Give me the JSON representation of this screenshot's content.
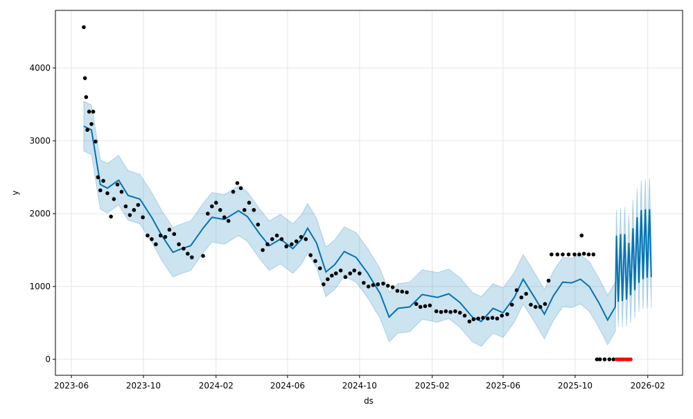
{
  "chart_data": {
    "type": "forecast",
    "xlabel": "ds",
    "ylabel": "y",
    "xlim": [
      "2023-05-05",
      "2026-04-01"
    ],
    "ylim": [
      -219,
      4790
    ],
    "xticks": [
      "2023-06",
      "2023-10",
      "2024-02",
      "2024-06",
      "2024-10",
      "2025-02",
      "2025-06",
      "2025-10",
      "2026-02"
    ],
    "yticks": [
      0,
      1000,
      2000,
      3000,
      4000
    ],
    "grid": true,
    "series": [
      {
        "kind": "band",
        "color": "#0072b2",
        "x": [
          "2023-06-22",
          "2023-07-05",
          "2023-07-20",
          "2023-08-01",
          "2023-08-20",
          "2023-09-05",
          "2023-09-25",
          "2023-10-15",
          "2023-11-01",
          "2023-11-20",
          "2023-12-05",
          "2023-12-20",
          "2024-01-10",
          "2024-01-25",
          "2024-02-15",
          "2024-03-10",
          "2024-03-25",
          "2024-04-15",
          "2024-05-01",
          "2024-05-20",
          "2024-06-10",
          "2024-06-25",
          "2024-07-05",
          "2024-07-20",
          "2024-08-05",
          "2024-08-20",
          "2024-09-05",
          "2024-09-25",
          "2024-10-15",
          "2024-11-05",
          "2024-11-20",
          "2024-12-05",
          "2024-12-25",
          "2025-01-15",
          "2025-02-10",
          "2025-03-01",
          "2025-03-20",
          "2025-04-10",
          "2025-04-25",
          "2025-05-15",
          "2025-06-01",
          "2025-06-20",
          "2025-07-05",
          "2025-07-25",
          "2025-08-10",
          "2025-08-25",
          "2025-09-10",
          "2025-09-25",
          "2025-10-10",
          "2025-10-25",
          "2025-11-10",
          "2025-11-25",
          "2025-12-08",
          "2025-12-10",
          "2025-12-13",
          "2025-12-17",
          "2025-12-20",
          "2025-12-24",
          "2025-12-27",
          "2025-12-31",
          "2026-01-03",
          "2026-01-07",
          "2026-01-10",
          "2026-01-14",
          "2026-01-17",
          "2026-01-21",
          "2026-01-24",
          "2026-01-28",
          "2026-01-31",
          "2026-02-04",
          "2026-02-07"
        ],
        "values": [
          3200,
          3150,
          2400,
          2350,
          2460,
          2250,
          2200,
          1950,
          1700,
          1470,
          1520,
          1560,
          1800,
          1950,
          1920,
          2040,
          1960,
          1720,
          1560,
          1650,
          1520,
          1650,
          1800,
          1600,
          1200,
          1300,
          1480,
          1400,
          1180,
          900,
          580,
          700,
          720,
          890,
          850,
          900,
          780,
          580,
          520,
          700,
          640,
          850,
          1100,
          840,
          620,
          870,
          1060,
          1050,
          1100,
          1000,
          780,
          540,
          720,
          1700,
          790,
          1720,
          800,
          1720,
          820,
          1600,
          880,
          1800,
          950,
          1950,
          1050,
          2050,
          1100,
          2060,
          1120,
          2060,
          1130
        ],
        "upper": [
          3540,
          3490,
          2740,
          2690,
          2800,
          2590,
          2540,
          2290,
          2040,
          1810,
          1860,
          1900,
          2140,
          2290,
          2260,
          2380,
          2300,
          2060,
          1900,
          1990,
          1860,
          1990,
          2140,
          1940,
          1540,
          1640,
          1820,
          1740,
          1520,
          1240,
          920,
          1040,
          1060,
          1230,
          1190,
          1240,
          1120,
          920,
          860,
          1040,
          980,
          1190,
          1440,
          1180,
          960,
          1210,
          1400,
          1390,
          1440,
          1340,
          1120,
          880,
          1060,
          2050,
          1140,
          2080,
          1160,
          2090,
          1190,
          1980,
          1260,
          2190,
          1340,
          2350,
          1450,
          2460,
          1510,
          2480,
          1540,
          2490,
          1560
        ],
        "lower": [
          2860,
          2810,
          2060,
          2010,
          2120,
          1910,
          1860,
          1610,
          1360,
          1130,
          1180,
          1220,
          1460,
          1610,
          1580,
          1700,
          1620,
          1380,
          1220,
          1310,
          1180,
          1310,
          1460,
          1260,
          860,
          960,
          1140,
          1060,
          840,
          560,
          240,
          360,
          380,
          550,
          510,
          560,
          440,
          240,
          180,
          360,
          300,
          510,
          760,
          500,
          280,
          530,
          720,
          710,
          760,
          660,
          440,
          200,
          380,
          1350,
          440,
          1360,
          440,
          1350,
          450,
          1220,
          500,
          1410,
          560,
          1550,
          650,
          1640,
          690,
          1640,
          700,
          1630,
          700
        ]
      },
      {
        "kind": "points",
        "color": "#000000",
        "x": [
          "2023-06-22",
          "2023-06-24",
          "2023-06-26",
          "2023-06-28",
          "2023-07-01",
          "2023-07-05",
          "2023-07-08",
          "2023-07-12",
          "2023-07-16",
          "2023-07-20",
          "2023-07-25",
          "2023-08-01",
          "2023-08-07",
          "2023-08-12",
          "2023-08-18",
          "2023-08-25",
          "2023-09-01",
          "2023-09-08",
          "2023-09-15",
          "2023-09-22",
          "2023-09-30",
          "2023-10-08",
          "2023-10-15",
          "2023-10-22",
          "2023-10-30",
          "2023-11-07",
          "2023-11-14",
          "2023-11-22",
          "2023-11-30",
          "2023-12-08",
          "2023-12-15",
          "2023-12-22",
          "2024-01-10",
          "2024-01-18",
          "2024-01-25",
          "2024-02-01",
          "2024-02-08",
          "2024-02-15",
          "2024-02-22",
          "2024-03-01",
          "2024-03-08",
          "2024-03-14",
          "2024-03-20",
          "2024-03-28",
          "2024-04-05",
          "2024-04-12",
          "2024-04-20",
          "2024-04-28",
          "2024-05-06",
          "2024-05-14",
          "2024-05-22",
          "2024-05-30",
          "2024-06-08",
          "2024-06-16",
          "2024-06-24",
          "2024-07-02",
          "2024-07-10",
          "2024-07-18",
          "2024-07-26",
          "2024-08-01",
          "2024-08-08",
          "2024-08-15",
          "2024-08-22",
          "2024-08-30",
          "2024-09-07",
          "2024-09-15",
          "2024-09-22",
          "2024-10-01",
          "2024-10-08",
          "2024-10-16",
          "2024-10-24",
          "2024-11-01",
          "2024-11-10",
          "2024-11-18",
          "2024-11-26",
          "2024-12-04",
          "2024-12-12",
          "2024-12-20",
          "2025-01-05",
          "2025-01-12",
          "2025-01-20",
          "2025-01-28",
          "2025-02-08",
          "2025-02-16",
          "2025-02-24",
          "2025-03-04",
          "2025-03-12",
          "2025-03-20",
          "2025-03-28",
          "2025-04-05",
          "2025-04-12",
          "2025-04-20",
          "2025-04-28",
          "2025-05-06",
          "2025-05-14",
          "2025-05-22",
          "2025-05-30",
          "2025-06-08",
          "2025-06-16",
          "2025-06-24",
          "2025-07-02",
          "2025-07-10",
          "2025-07-18",
          "2025-07-26",
          "2025-08-03",
          "2025-08-11",
          "2025-08-17",
          "2025-08-22",
          "2025-09-01",
          "2025-09-10",
          "2025-09-20",
          "2025-09-30",
          "2025-10-08",
          "2025-10-12",
          "2025-10-16",
          "2025-10-24",
          "2025-11-01",
          "2025-11-07",
          "2025-11-12",
          "2025-11-20",
          "2025-11-28",
          "2025-12-05"
        ],
        "values": [
          4560,
          3860,
          3600,
          3150,
          3400,
          3230,
          3400,
          2990,
          2500,
          2320,
          2450,
          2280,
          1960,
          2200,
          2400,
          2300,
          2100,
          1980,
          2050,
          2120,
          1950,
          1700,
          1650,
          1580,
          1700,
          1680,
          1780,
          1720,
          1580,
          1520,
          1450,
          1400,
          1420,
          2000,
          2100,
          2150,
          2050,
          1950,
          1900,
          2300,
          2420,
          2350,
          2050,
          2150,
          2050,
          1850,
          1500,
          1580,
          1650,
          1700,
          1650,
          1550,
          1580,
          1620,
          1680,
          1650,
          1430,
          1350,
          1250,
          1030,
          1100,
          1150,
          1180,
          1220,
          1130,
          1180,
          1220,
          1180,
          1050,
          1000,
          1020,
          1030,
          1040,
          1010,
          990,
          940,
          930,
          920,
          760,
          720,
          730,
          740,
          660,
          650,
          660,
          650,
          660,
          640,
          600,
          520,
          550,
          560,
          570,
          560,
          570,
          560,
          600,
          620,
          750,
          950,
          850,
          900,
          750,
          720,
          720,
          760,
          1080,
          1440,
          1440,
          1440,
          1440,
          1440,
          1440,
          1700,
          1450,
          1440,
          1440,
          0,
          0,
          0,
          0,
          0
        ]
      },
      {
        "kind": "points",
        "color": "#ff0000",
        "x": [
          "2025-12-10",
          "2025-12-14",
          "2025-12-18",
          "2025-12-22",
          "2025-12-26",
          "2025-12-30",
          "2026-01-03"
        ],
        "values": [
          0,
          0,
          0,
          0,
          0,
          0,
          0
        ]
      }
    ]
  }
}
